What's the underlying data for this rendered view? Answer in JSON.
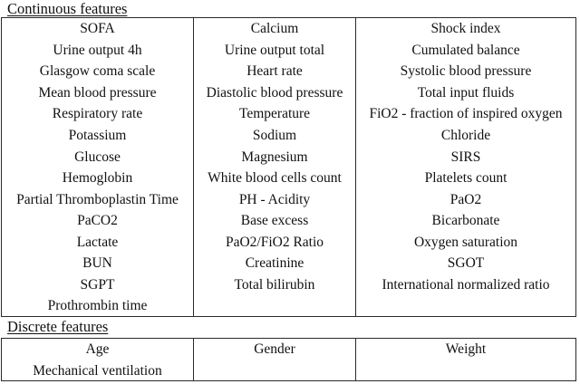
{
  "headings": {
    "continuous": "Continuous features",
    "discrete": "Discrete features"
  },
  "colors": {
    "background": "#ffffff",
    "text": "#111111",
    "border": "#2a2a2a"
  },
  "continuous": {
    "col1": [
      "SOFA",
      "Urine output 4h",
      "Glasgow coma scale",
      "Mean blood pressure",
      "Respiratory rate",
      "Potassium",
      "Glucose",
      "Hemoglobin",
      "Partial Thromboplastin Time",
      "PaCO2",
      "Lactate",
      "BUN",
      "SGPT",
      "Prothrombin time"
    ],
    "col2": [
      "Calcium",
      "Urine output total",
      "Heart rate",
      "Diastolic blood pressure",
      "Temperature",
      "Sodium",
      "Magnesium",
      "White blood cells count",
      "PH - Acidity",
      "Base excess",
      "PaO2/FiO2 Ratio",
      "Creatinine",
      "Total bilirubin"
    ],
    "col3": [
      "Shock index",
      "Cumulated balance",
      "Systolic blood pressure",
      "Total input fluids",
      "FiO2 - fraction of inspired oxygen",
      "Chloride",
      "SIRS",
      "Platelets count",
      "PaO2",
      "Bicarbonate",
      "Oxygen saturation",
      "SGOT",
      "International normalized ratio"
    ]
  },
  "discrete": {
    "col1": [
      "Age",
      "Mechanical ventilation"
    ],
    "col2": [
      "Gender"
    ],
    "col3": [
      "Weight"
    ]
  }
}
